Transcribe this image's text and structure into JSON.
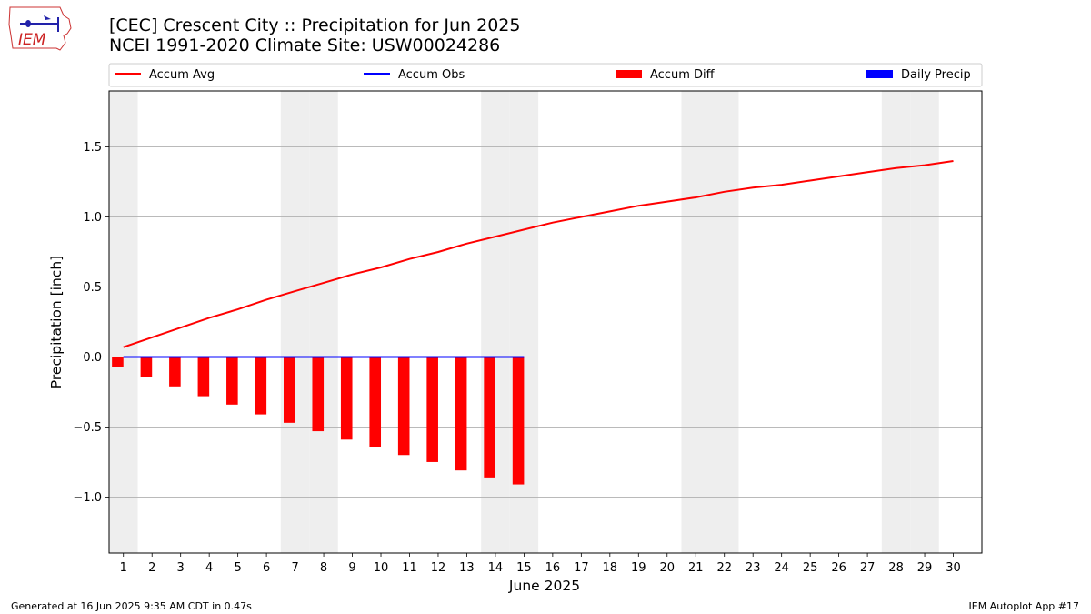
{
  "title": {
    "line1": "[CEC] Crescent City :: Precipitation for Jun 2025",
    "line2": "NCEI 1991-2020 Climate Site: USW00024286"
  },
  "logo_text": "IEM",
  "footer": {
    "left": "Generated at 16 Jun 2025 9:35 AM CDT in 0.47s",
    "right": "IEM Autoplot App #17"
  },
  "colors": {
    "accum_avg": "#ff0000",
    "accum_obs": "#0000ff",
    "accum_diff": "#ff0000",
    "daily_precip": "#0000ff",
    "weekend_shade": "#eeeeee",
    "grid": "#b0b0b0"
  },
  "chart_data": {
    "type": "bar",
    "title": "[CEC] Crescent City :: Precipitation for Jun 2025",
    "subtitle": "NCEI 1991-2020 Climate Site: USW00024286",
    "xlabel": "June 2025",
    "ylabel": "Precipitation [inch]",
    "xlim": [
      0.5,
      31.0
    ],
    "ylim": [
      -1.4,
      1.9
    ],
    "yticks": [
      -1.0,
      -0.5,
      0.0,
      0.5,
      1.0,
      1.5
    ],
    "ytick_labels": [
      "−1.0",
      "−0.5",
      "0.0",
      "0.5",
      "1.0",
      "1.5"
    ],
    "grid": "horizontal",
    "legend_position": "top, above plot, 4 columns",
    "weekend_shaded_days": [
      1,
      7,
      8,
      14,
      15,
      21,
      22,
      28,
      29
    ],
    "days": [
      1,
      2,
      3,
      4,
      5,
      6,
      7,
      8,
      9,
      10,
      11,
      12,
      13,
      14,
      15,
      16,
      17,
      18,
      19,
      20,
      21,
      22,
      23,
      24,
      25,
      26,
      27,
      28,
      29,
      30
    ],
    "series": [
      {
        "name": "Accum Avg",
        "kind": "line",
        "x": [
          1,
          2,
          3,
          4,
          5,
          6,
          7,
          8,
          9,
          10,
          11,
          12,
          13,
          14,
          15,
          16,
          17,
          18,
          19,
          20,
          21,
          22,
          23,
          24,
          25,
          26,
          27,
          28,
          29,
          30
        ],
        "values": [
          0.07,
          0.14,
          0.21,
          0.28,
          0.34,
          0.41,
          0.47,
          0.53,
          0.59,
          0.64,
          0.7,
          0.75,
          0.81,
          0.86,
          0.91,
          0.96,
          1.0,
          1.04,
          1.08,
          1.11,
          1.14,
          1.18,
          1.21,
          1.23,
          1.26,
          1.29,
          1.32,
          1.35,
          1.37,
          1.4
        ]
      },
      {
        "name": "Accum Obs",
        "kind": "line",
        "x": [
          1,
          2,
          3,
          4,
          5,
          6,
          7,
          8,
          9,
          10,
          11,
          12,
          13,
          14,
          15
        ],
        "values": [
          0,
          0,
          0,
          0,
          0,
          0,
          0,
          0,
          0,
          0,
          0,
          0,
          0,
          0,
          0
        ]
      },
      {
        "name": "Accum Diff",
        "kind": "bar",
        "x": [
          1,
          2,
          3,
          4,
          5,
          6,
          7,
          8,
          9,
          10,
          11,
          12,
          13,
          14,
          15
        ],
        "values": [
          -0.07,
          -0.14,
          -0.21,
          -0.28,
          -0.34,
          -0.41,
          -0.47,
          -0.53,
          -0.59,
          -0.64,
          -0.7,
          -0.75,
          -0.81,
          -0.86,
          -0.91
        ]
      },
      {
        "name": "Daily Precip",
        "kind": "bar",
        "x": [
          1,
          2,
          3,
          4,
          5,
          6,
          7,
          8,
          9,
          10,
          11,
          12,
          13,
          14,
          15
        ],
        "values": [
          0,
          0,
          0,
          0,
          0,
          0,
          0,
          0,
          0,
          0,
          0,
          0,
          0,
          0,
          0
        ]
      }
    ]
  }
}
